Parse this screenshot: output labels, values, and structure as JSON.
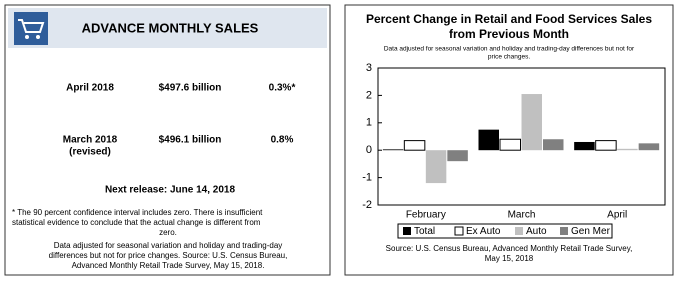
{
  "summary_panel": {
    "title": "ADVANCE MONTHLY SALES",
    "rows": [
      {
        "period": [
          "April 2018"
        ],
        "sales": "$497.6 billion",
        "change": "0.3%*"
      },
      {
        "period": [
          "March 2018",
          "(revised)"
        ],
        "sales": "$496.1 billion",
        "change": "0.8%"
      }
    ],
    "next_release": "Next release: June 14, 2018",
    "notes": [
      "* The 90 percent confidence interval includes zero. There is insufficient",
      "statistical evidence to conclude that the actual change is different from",
      "zero.",
      "Data adjusted for seasonal variation and holiday and trading-day",
      "differences but not for price changes. Source: U.S. Census Bureau,",
      "Advanced Monthly Retail Trade Survey, May 15, 2018."
    ]
  },
  "chart_data": {
    "type": "bar",
    "title": [
      "Percent Change in Retail and Food Services Sales",
      "from Previous Month"
    ],
    "subtitle": [
      "Data adjusted for seasonal variation and holiday and trading-day differences but not for",
      "price changes."
    ],
    "categories": [
      "February",
      "March",
      "April"
    ],
    "series": [
      {
        "name": "Total",
        "color": "#000000",
        "values": [
          0.03,
          0.75,
          0.3
        ]
      },
      {
        "name": "Ex Auto",
        "color": "#ffffff",
        "values": [
          0.35,
          0.4,
          0.35
        ]
      },
      {
        "name": "Auto",
        "color": "#c0c0c0",
        "values": [
          -1.2,
          2.05,
          0.05
        ]
      },
      {
        "name": "Gen Mer",
        "color": "#808080",
        "values": [
          -0.4,
          0.4,
          0.25
        ]
      }
    ],
    "ylim": [
      -2,
      3
    ],
    "yticks": [
      -2,
      -1,
      0,
      1,
      2,
      3
    ],
    "grid": false,
    "source": [
      "Source: U.S. Census Bureau, Advanced Monthly Retail Trade Survey,",
      "May 15, 2018"
    ]
  }
}
